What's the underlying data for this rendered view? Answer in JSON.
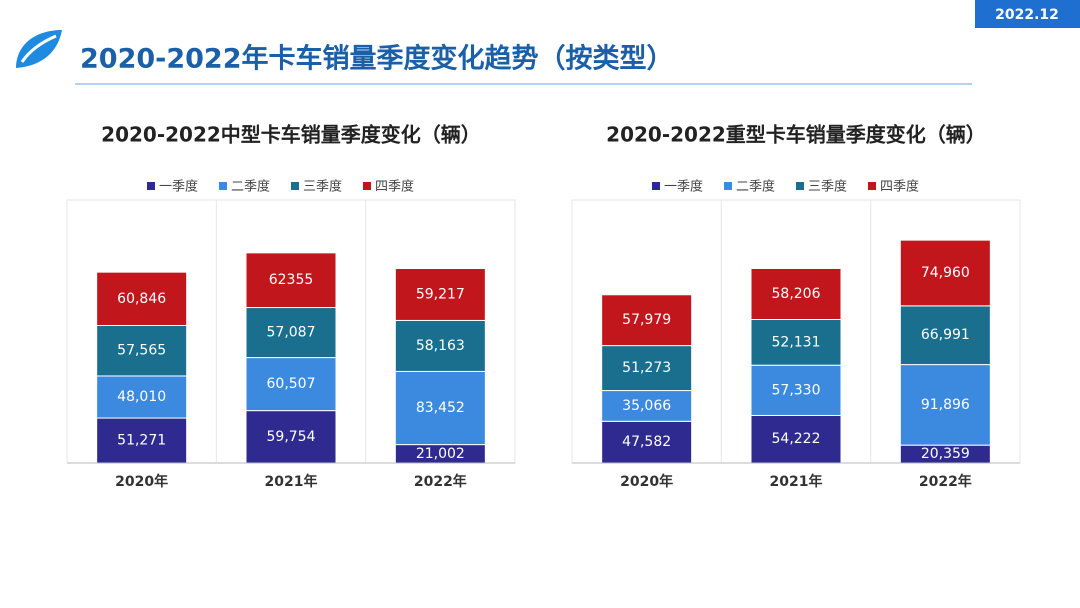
{
  "header": {
    "title": "2020-2022年卡车销量季度变化趋势（按类型）",
    "date": "2022.12"
  },
  "chart_data": [
    {
      "type": "stacked-bar",
      "title": "2020-2022中型卡车销量季度变化（辆）",
      "categories": [
        "2020年",
        "2021年",
        "2022年"
      ],
      "ylim": [
        0,
        300000
      ],
      "series": [
        {
          "name": "一季度",
          "color": "#2e2a8f",
          "values": [
            51271,
            59754,
            21002
          ],
          "value_labels": [
            "51,271",
            "59,754",
            "21,002"
          ]
        },
        {
          "name": "二季度",
          "color": "#3b8ae0",
          "values": [
            48010,
            60507,
            83452
          ],
          "value_labels": [
            "48,010",
            "60,507",
            "83,452"
          ]
        },
        {
          "name": "三季度",
          "color": "#1a6e8e",
          "values": [
            57565,
            57087,
            58163
          ],
          "value_labels": [
            "57,565",
            "57,087",
            "58,163"
          ]
        },
        {
          "name": "四季度",
          "color": "#c0161c",
          "values": [
            60846,
            62355,
            59217
          ],
          "value_labels": [
            "60,846",
            "62355",
            "59,217"
          ]
        }
      ]
    },
    {
      "type": "stacked-bar",
      "title": "2020-2022重型卡车销量季度变化（辆）",
      "categories": [
        "2020年",
        "2021年",
        "2022年"
      ],
      "ylim": [
        0,
        300000
      ],
      "series": [
        {
          "name": "一季度",
          "color": "#2e2a8f",
          "values": [
            47582,
            54222,
            20359
          ],
          "value_labels": [
            "47,582",
            "54,222",
            "20,359"
          ]
        },
        {
          "name": "二季度",
          "color": "#3b8ae0",
          "values": [
            35066,
            57330,
            91896
          ],
          "value_labels": [
            "35,066",
            "57,330",
            "91,896"
          ]
        },
        {
          "name": "三季度",
          "color": "#1a6e8e",
          "values": [
            51273,
            52131,
            66991
          ],
          "value_labels": [
            "51,273",
            "52,131",
            "66,991"
          ]
        },
        {
          "name": "四季度",
          "color": "#c0161c",
          "values": [
            57979,
            58206,
            74960
          ],
          "value_labels": [
            "57,979",
            "58,206",
            "74,960"
          ]
        }
      ]
    }
  ]
}
